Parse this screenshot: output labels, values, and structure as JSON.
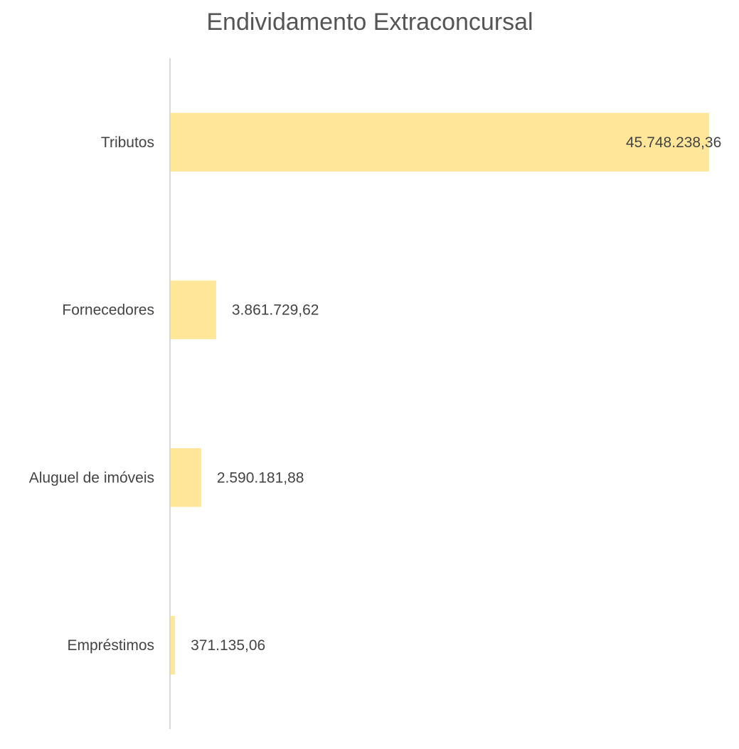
{
  "chart_data": {
    "type": "bar",
    "orientation": "horizontal",
    "title": "Endividamento Extraconcursal",
    "categories": [
      "Tributos",
      "Fornecedores",
      "Aluguel de imóveis",
      "Empréstimos"
    ],
    "values": [
      45748238.36,
      3861729.62,
      2590181.88,
      371135.06
    ],
    "value_labels": [
      "45.748.238,36",
      "3.861.729,62",
      "2.590.181,88",
      "371.135,06"
    ],
    "xlabel": "",
    "ylabel": "",
    "xlim": [
      0,
      46000000
    ],
    "grid": false,
    "legend": "none",
    "colors": {
      "bar": "#FFE699",
      "axis": "#D9D9D9",
      "title": "#555555",
      "text": "#444444"
    }
  }
}
